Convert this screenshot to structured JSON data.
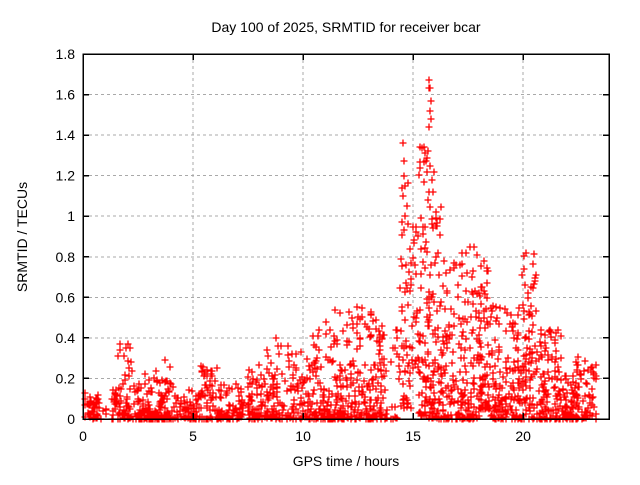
{
  "page": {
    "background_color": "#ffffff",
    "border_color": "#000000",
    "grid_color": "#a9a9a9"
  },
  "chart_data": {
    "type": "scatter",
    "title": "Day 100 of 2025, SRMTID for receiver bcar",
    "xlabel": "GPS time / hours",
    "ylabel": "SRMTID / TECUs",
    "xlim": [
      0,
      23.9
    ],
    "ylim": [
      0,
      1.8
    ],
    "x_ticks": {
      "values": [
        0,
        5,
        10,
        15,
        20
      ],
      "labels": [
        "0",
        "5",
        "10",
        "15",
        "20"
      ]
    },
    "y_ticks": {
      "values": [
        0,
        0.2,
        0.4,
        0.6,
        0.8,
        1.0,
        1.2,
        1.4,
        1.6,
        1.8
      ],
      "labels": [
        "0",
        "0.2",
        "0.4",
        "0.6",
        "0.8",
        "1",
        "1.2",
        "1.4",
        "1.6",
        "1.8"
      ]
    },
    "grid": true,
    "grid_style": "dashed",
    "legend_position": "none",
    "marker": {
      "shape": "plus",
      "color": "#ff0000",
      "size": 7
    },
    "series": [
      {
        "name": "SRMTID",
        "approx_point_count": 2040,
        "bin_format": [
          "hour_start",
          "hour_end",
          "count",
          "value_min_TECU",
          "value_max_TECU",
          "skew_exponent"
        ],
        "density_bins": [
          [
            0.05,
            0.75,
            45,
            0.0,
            0.13,
            1.5
          ],
          [
            0.75,
            1.3,
            5,
            0.0,
            0.06,
            2.0
          ],
          [
            1.3,
            1.55,
            18,
            0.0,
            0.16,
            2.0
          ],
          [
            1.55,
            2.2,
            48,
            0.0,
            0.37,
            2.4
          ],
          [
            2.2,
            3.7,
            135,
            0.0,
            0.24,
            2.6
          ],
          [
            3.7,
            4.2,
            35,
            0.0,
            0.3,
            2.4
          ],
          [
            4.2,
            4.6,
            18,
            0.0,
            0.12,
            2.0
          ],
          [
            4.6,
            5.35,
            55,
            0.0,
            0.16,
            2.2
          ],
          [
            5.35,
            6.1,
            55,
            0.0,
            0.28,
            2.4
          ],
          [
            6.1,
            7.4,
            85,
            0.0,
            0.19,
            2.3
          ],
          [
            7.4,
            8.3,
            65,
            0.0,
            0.27,
            2.3
          ],
          [
            8.3,
            9.4,
            75,
            0.0,
            0.4,
            2.4
          ],
          [
            9.4,
            10.4,
            70,
            0.0,
            0.33,
            2.3
          ],
          [
            10.4,
            11.4,
            85,
            0.0,
            0.44,
            2.8
          ],
          [
            11.4,
            12.1,
            70,
            0.0,
            0.55,
            2.6
          ],
          [
            12.1,
            13.3,
            115,
            0.0,
            0.55,
            2.4
          ],
          [
            13.3,
            13.85,
            50,
            0.0,
            0.5,
            2.2
          ],
          [
            13.85,
            14.35,
            16,
            0.0,
            0.45,
            1.6
          ],
          [
            14.35,
            14.9,
            55,
            0.05,
            1.2,
            1.6
          ],
          [
            14.9,
            15.25,
            26,
            0.25,
            1.0,
            1.4
          ],
          [
            15.25,
            16.0,
            120,
            0.0,
            1.35,
            1.7
          ],
          [
            16.0,
            16.35,
            45,
            0.0,
            1.05,
            1.8
          ],
          [
            16.35,
            17.2,
            90,
            0.0,
            0.8,
            2.2
          ],
          [
            17.2,
            18.0,
            90,
            0.0,
            0.85,
            2.2
          ],
          [
            18.0,
            18.5,
            70,
            0.05,
            0.78,
            1.7
          ],
          [
            18.5,
            19.3,
            85,
            0.0,
            0.6,
            2.2
          ],
          [
            19.3,
            19.9,
            60,
            0.0,
            0.55,
            2.2
          ],
          [
            19.9,
            20.6,
            85,
            0.0,
            0.82,
            2.0
          ],
          [
            20.6,
            21.8,
            115,
            0.0,
            0.45,
            2.4
          ],
          [
            21.8,
            22.3,
            50,
            0.0,
            0.22,
            2.2
          ],
          [
            22.3,
            22.9,
            48,
            0.0,
            0.33,
            2.0
          ],
          [
            22.9,
            23.35,
            26,
            0.0,
            0.27,
            1.8
          ]
        ],
        "peak_points": [
          [
            15.7,
            1.67
          ],
          [
            15.73,
            1.63
          ],
          [
            15.76,
            1.63
          ],
          [
            15.8,
            1.57
          ],
          [
            15.78,
            1.52
          ],
          [
            15.83,
            1.48
          ],
          [
            15.74,
            1.44
          ],
          [
            15.55,
            1.31
          ],
          [
            15.6,
            1.27
          ],
          [
            15.65,
            1.22
          ],
          [
            15.88,
            1.18
          ],
          [
            15.92,
            1.12
          ],
          [
            14.55,
            1.36
          ],
          [
            14.6,
            1.27
          ],
          [
            14.58,
            1.2
          ],
          [
            14.65,
            1.15
          ],
          [
            14.52,
            1.1
          ],
          [
            14.7,
            1.05
          ],
          [
            16.05,
            1.02
          ],
          [
            16.1,
            0.95
          ],
          [
            2.05,
            0.37
          ],
          [
            1.95,
            0.35
          ],
          [
            8.75,
            0.4
          ],
          [
            11.05,
            0.48
          ],
          [
            12.45,
            0.55
          ],
          [
            20.15,
            0.82
          ],
          [
            17.6,
            0.85
          ],
          [
            18.2,
            0.78
          ]
        ]
      }
    ]
  }
}
